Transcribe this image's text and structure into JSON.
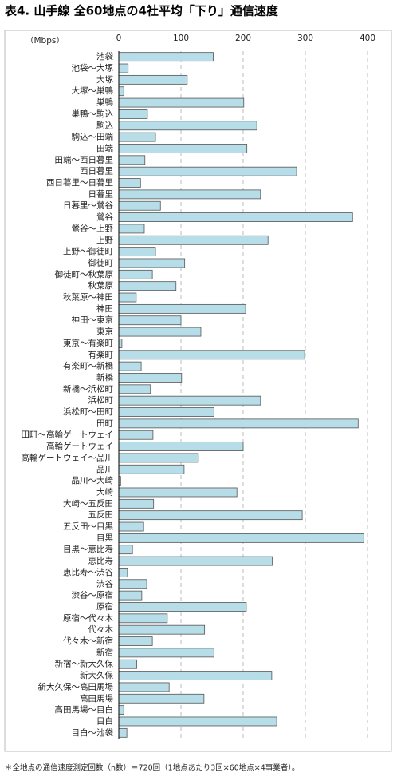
{
  "chart_data": {
    "type": "bar",
    "orientation": "horizontal",
    "title": "表4. 山手線 全60地点の4社平均「下り」通信速度",
    "unit_label": "（Mbps）",
    "footnote": "＊全地点の通信速度測定回数（n数）＝720回（1地点あたり3回×60地点×4事業者）。",
    "categories": [
      "池袋",
      "池袋～大塚",
      "大塚",
      "大塚～巣鴨",
      "巣鴨",
      "巣鴨～駒込",
      "駒込",
      "駒込～田端",
      "田端",
      "田端～西日暮里",
      "西日暮里",
      "西日暮里～日暮里",
      "日暮里",
      "日暮里～鶯谷",
      "鶯谷",
      "鶯谷～上野",
      "上野",
      "上野～御徒町",
      "御徒町",
      "御徒町～秋葉原",
      "秋葉原",
      "秋葉原～神田",
      "神田",
      "神田～東京",
      "東京",
      "東京～有楽町",
      "有楽町",
      "有楽町～新橋",
      "新橋",
      "新橋～浜松町",
      "浜松町",
      "浜松町～田町",
      "田町",
      "田町～高輪ゲートウェイ",
      "高輪ゲートウェイ",
      "高輪ゲートウェイ～品川",
      "品川",
      "品川～大崎",
      "大崎",
      "大崎～五反田",
      "五反田",
      "五反田～目黒",
      "目黒",
      "目黒～恵比寿",
      "恵比寿",
      "恵比寿～渋谷",
      "渋谷",
      "渋谷～原宿",
      "原宿",
      "原宿～代々木",
      "代々木",
      "代々木～新宿",
      "新宿",
      "新宿～新大久保",
      "新大久保",
      "新大久保～高田馬場",
      "高田馬場",
      "高田馬場～目白",
      "目白",
      "目白～池袋"
    ],
    "values": [
      152,
      15,
      110,
      8,
      201,
      46,
      222,
      59,
      206,
      42,
      286,
      35,
      228,
      67,
      376,
      41,
      240,
      59,
      106,
      54,
      92,
      28,
      204,
      100,
      132,
      5,
      299,
      36,
      101,
      51,
      228,
      153,
      385,
      55,
      200,
      128,
      105,
      3,
      190,
      56,
      295,
      40,
      394,
      22,
      247,
      14,
      45,
      37,
      205,
      78,
      138,
      54,
      153,
      29,
      246,
      81,
      137,
      8,
      254,
      13
    ],
    "color": "#b7dde8",
    "xlim": [
      0,
      400
    ],
    "xticks": [
      0,
      100,
      200,
      300,
      400
    ],
    "grid": true
  }
}
